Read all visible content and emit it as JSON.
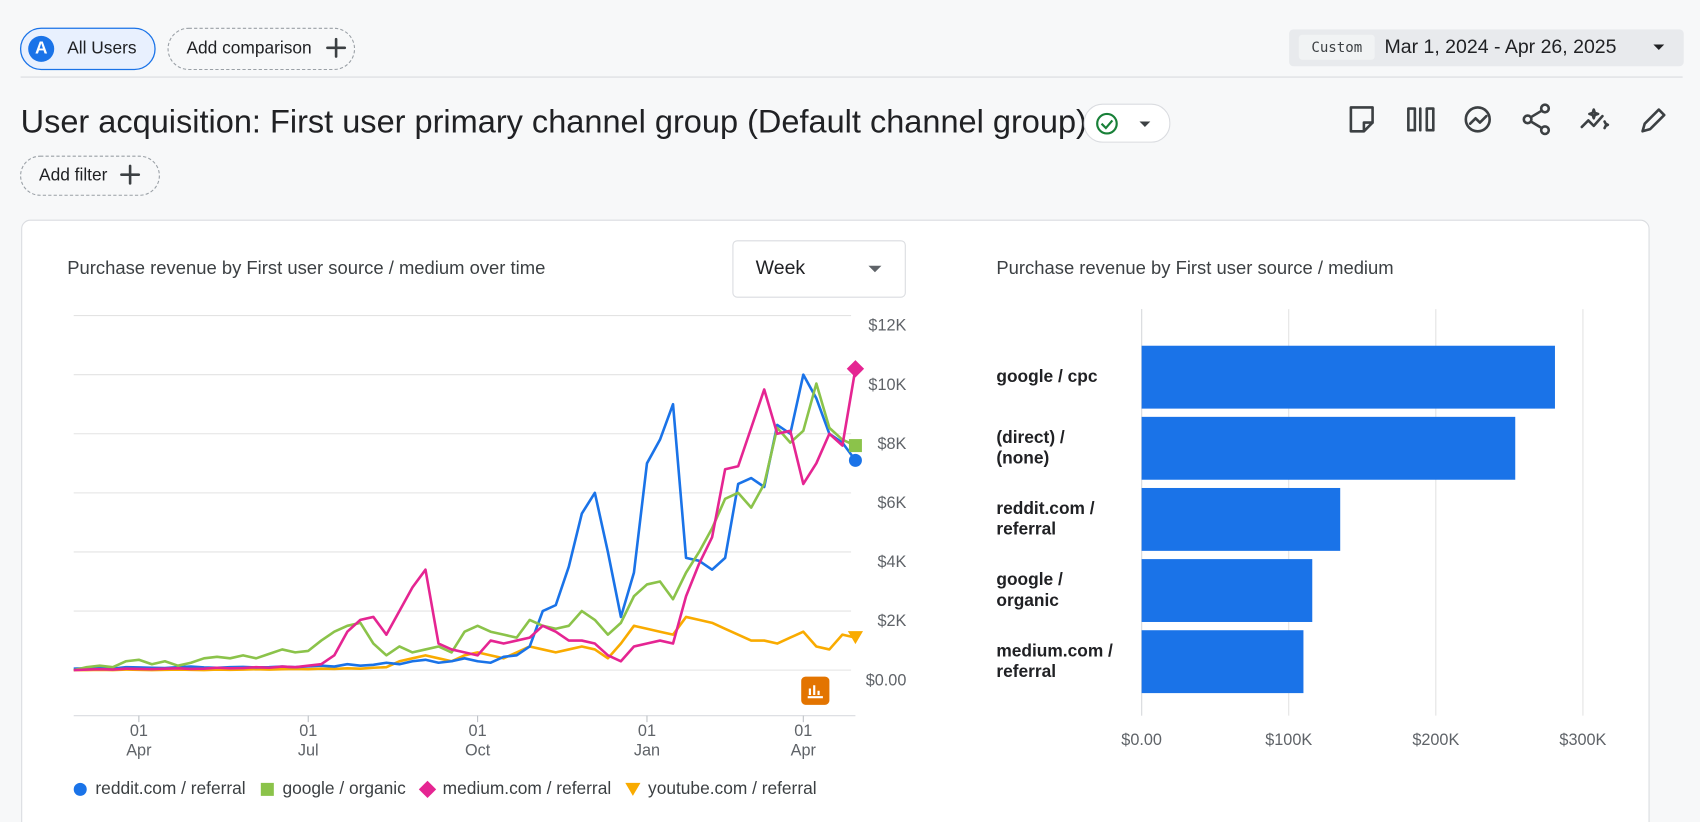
{
  "header": {
    "segment_badge": "A",
    "segment": "All Users",
    "add_comparison": "Add comparison",
    "date_mode": "Custom",
    "date_range": "Mar 1, 2024 - Apr 26, 2025"
  },
  "title": "User acquisition: First user primary channel group (Default channel group)",
  "add_filter": "Add filter",
  "chart_data": [
    {
      "type": "line",
      "title": "Purchase revenue by First user source / medium over time",
      "granularity": "Week",
      "categories": [
        null,
        null,
        null,
        null,
        null,
        "01 Apr",
        null,
        null,
        null,
        null,
        null,
        null,
        null,
        null,
        null,
        null,
        null,
        null,
        "01 Jul",
        null,
        null,
        null,
        null,
        null,
        null,
        null,
        null,
        null,
        null,
        null,
        null,
        "01 Oct",
        null,
        null,
        null,
        null,
        null,
        null,
        null,
        null,
        null,
        null,
        null,
        null,
        "01 Jan",
        null,
        null,
        null,
        null,
        null,
        null,
        null,
        null,
        null,
        null,
        null,
        "01 Apr",
        null,
        null,
        null,
        null
      ],
      "ylim": [
        0,
        12000
      ],
      "yticks": [
        {
          "value": 0,
          "label": "$0.00"
        },
        {
          "value": 2000,
          "label": "$2K"
        },
        {
          "value": 4000,
          "label": "$4K"
        },
        {
          "value": 6000,
          "label": "$6K"
        },
        {
          "value": 8000,
          "label": "$8K"
        },
        {
          "value": 10000,
          "label": "$10K"
        },
        {
          "value": 12000,
          "label": "$12K"
        }
      ],
      "grid": true,
      "legend": "bottom",
      "series": [
        {
          "name": "reddit.com / referral",
          "color": "#1a73e8",
          "marker": "circle",
          "values": [
            50,
            60,
            80,
            50,
            100,
            90,
            80,
            70,
            100,
            120,
            90,
            80,
            100,
            110,
            90,
            100,
            120,
            100,
            130,
            150,
            120,
            200,
            150,
            180,
            250,
            200,
            300,
            350,
            250,
            300,
            400,
            300,
            250,
            450,
            500,
            800,
            2000,
            2200,
            3500,
            5300,
            6000,
            4000,
            1800,
            3300,
            7000,
            7800,
            9000,
            3800,
            3700,
            3400,
            3800,
            6300,
            6500,
            6200,
            8300,
            8000,
            10000,
            9200,
            8000,
            7700,
            7100
          ]
        },
        {
          "name": "google / organic",
          "color": "#8bc34a",
          "marker": "square",
          "values": [
            0,
            100,
            150,
            100,
            300,
            350,
            200,
            300,
            150,
            250,
            400,
            450,
            400,
            500,
            400,
            550,
            700,
            600,
            650,
            1000,
            1300,
            1500,
            1600,
            900,
            500,
            800,
            600,
            700,
            800,
            600,
            1300,
            1500,
            1300,
            1200,
            1100,
            1700,
            1500,
            1400,
            1500,
            2000,
            1700,
            1200,
            1600,
            2500,
            2900,
            3000,
            2400,
            3300,
            4000,
            4800,
            5800,
            6000,
            5500,
            6300,
            8200,
            7700,
            8100,
            9700,
            8200,
            7800,
            7600
          ]
        },
        {
          "name": "medium.com / referral",
          "color": "#e52592",
          "marker": "diamond",
          "values": [
            0,
            20,
            30,
            20,
            50,
            40,
            30,
            50,
            60,
            40,
            50,
            80,
            60,
            70,
            100,
            80,
            120,
            100,
            150,
            200,
            500,
            1300,
            1700,
            1800,
            1200,
            2000,
            2800,
            3400,
            900,
            700,
            600,
            500,
            1000,
            900,
            1000,
            1100,
            1500,
            1300,
            1000,
            1000,
            900,
            500,
            300,
            800,
            900,
            1000,
            900,
            2500,
            3600,
            4500,
            6800,
            6900,
            8200,
            9500,
            8000,
            8100,
            6300,
            7000,
            8000,
            7600,
            10200
          ]
        },
        {
          "name": "youtube.com / referral",
          "color": "#f9ab00",
          "marker": "triangle",
          "values": [
            0,
            0,
            10,
            0,
            20,
            10,
            0,
            10,
            20,
            10,
            0,
            20,
            10,
            20,
            30,
            20,
            30,
            40,
            30,
            50,
            40,
            60,
            50,
            80,
            100,
            300,
            400,
            500,
            400,
            300,
            500,
            600,
            500,
            400,
            600,
            800,
            700,
            600,
            700,
            800,
            700,
            400,
            900,
            1500,
            1400,
            1300,
            1200,
            1800,
            1700,
            1600,
            1400,
            1200,
            1000,
            1000,
            900,
            1100,
            1300,
            800,
            700,
            1200,
            1100
          ]
        }
      ]
    },
    {
      "type": "barh",
      "title": "Purchase revenue by First user source / medium",
      "categories": [
        "google / cpc",
        "(direct) / (none)",
        "reddit.com / referral",
        "google / organic",
        "medium.com / referral"
      ],
      "values": [
        281000,
        254000,
        135000,
        116000,
        110000
      ],
      "color": "#1a73e8",
      "xlim": [
        0,
        300000
      ],
      "xticks": [
        {
          "value": 0,
          "label": "$0.00"
        },
        {
          "value": 100000,
          "label": "$100K"
        },
        {
          "value": 200000,
          "label": "$200K"
        },
        {
          "value": 300000,
          "label": "$300K"
        }
      ],
      "grid": true
    }
  ]
}
